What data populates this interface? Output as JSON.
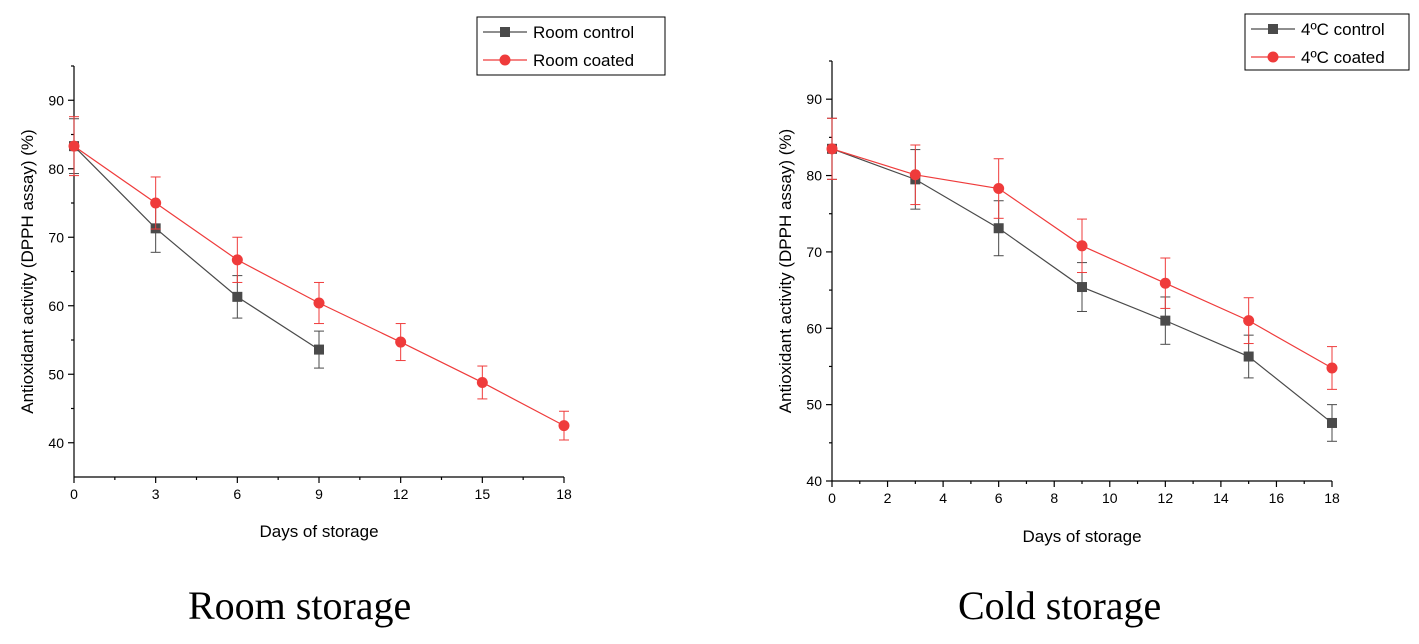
{
  "chart_data": [
    {
      "type": "line",
      "caption": "Room storage",
      "xlabel": "Days of storage",
      "ylabel": "Antioxidant activity (DPPH assay) (%)",
      "xlim": [
        0,
        18
      ],
      "ylim": [
        35,
        95
      ],
      "xticks": [
        0,
        3,
        6,
        9,
        12,
        15,
        18
      ],
      "yticks": [
        40,
        50,
        60,
        70,
        80,
        90
      ],
      "legend_position": "top-right",
      "series": [
        {
          "name": "Room control",
          "marker": "square",
          "color": "#4a4a4a",
          "x": [
            0,
            3,
            6,
            9
          ],
          "y": [
            83.3,
            71.3,
            61.3,
            53.6
          ],
          "err": [
            4.0,
            3.5,
            3.1,
            2.7
          ]
        },
        {
          "name": "Room coated",
          "marker": "circle",
          "color": "#ef3b3b",
          "x": [
            0,
            3,
            6,
            9,
            12,
            15,
            18
          ],
          "y": [
            83.3,
            75.0,
            66.7,
            60.4,
            54.7,
            48.8,
            42.5
          ],
          "err": [
            4.3,
            3.8,
            3.3,
            3.0,
            2.7,
            2.4,
            2.1
          ]
        }
      ]
    },
    {
      "type": "line",
      "caption": "Cold storage",
      "xlabel": "Days of storage",
      "ylabel": "Antioxidant activity (DPPH assay) (%)",
      "xlim": [
        0,
        18
      ],
      "ylim": [
        40,
        95
      ],
      "xticks": [
        0,
        2,
        4,
        6,
        8,
        10,
        12,
        14,
        16,
        18
      ],
      "yticks": [
        40,
        50,
        60,
        70,
        80,
        90
      ],
      "legend_position": "top-right",
      "series": [
        {
          "name": "4ºC control",
          "marker": "square",
          "color": "#4a4a4a",
          "x": [
            0,
            3,
            6,
            9,
            12,
            15,
            18
          ],
          "y": [
            83.5,
            79.5,
            73.1,
            65.4,
            61.0,
            56.3,
            47.6
          ],
          "err": [
            4.0,
            3.9,
            3.6,
            3.2,
            3.1,
            2.8,
            2.4
          ]
        },
        {
          "name": "4ºC coated",
          "marker": "circle",
          "color": "#ef3b3b",
          "x": [
            0,
            3,
            6,
            9,
            12,
            15,
            18
          ],
          "y": [
            83.5,
            80.1,
            78.3,
            70.8,
            65.9,
            61.0,
            54.8
          ],
          "err": [
            4.0,
            3.9,
            3.9,
            3.5,
            3.3,
            3.0,
            2.8
          ]
        }
      ]
    }
  ]
}
